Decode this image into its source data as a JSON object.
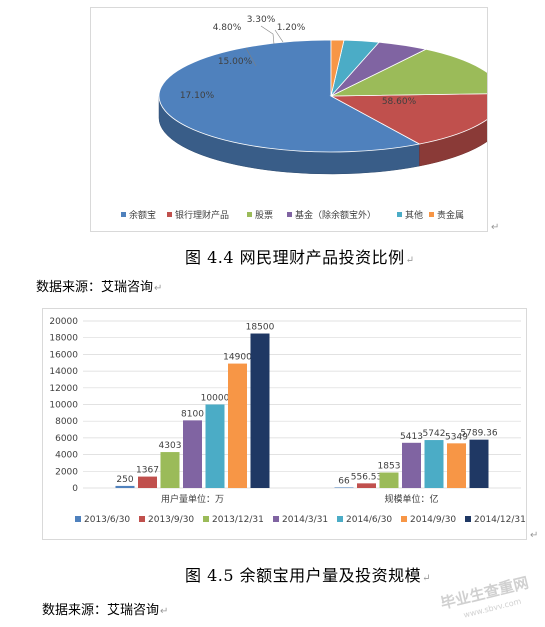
{
  "chart_data": [
    {
      "type": "pie",
      "style": "3d",
      "title": "",
      "slices": [
        {
          "label": "余额宝",
          "value": 58.6,
          "display": "58.60%",
          "color": "#4f81bd"
        },
        {
          "label": "银行理财产品",
          "value": 17.1,
          "display": "17.10%",
          "color": "#c0504d"
        },
        {
          "label": "股票",
          "value": 15.0,
          "display": "15.00%",
          "color": "#9bbb59"
        },
        {
          "label": "基金（除余额宝外）",
          "value": 4.8,
          "display": "4.80%",
          "color": "#8064a2"
        },
        {
          "label": "其他",
          "value": 3.3,
          "display": "3.30%",
          "color": "#4bacc6"
        },
        {
          "label": "贵金属",
          "value": 1.2,
          "display": "1.20%",
          "color": "#f79646"
        }
      ],
      "legend_position": "bottom"
    },
    {
      "type": "bar",
      "title": "",
      "ylim": [
        0,
        20000
      ],
      "yticks": [
        0,
        2000,
        4000,
        6000,
        8000,
        10000,
        12000,
        14000,
        16000,
        18000,
        20000
      ],
      "grid": true,
      "legend_position": "bottom",
      "groups": [
        {
          "label": "用户量单位：万",
          "values": [
            250,
            1367,
            4303,
            8100,
            10000,
            14900,
            18500
          ],
          "value_labels": [
            "250",
            "1367",
            "4303",
            "8100",
            "10000",
            "14900",
            "18500"
          ]
        },
        {
          "label": "规模单位：亿",
          "values": [
            66,
            556.53,
            1853,
            5413,
            5742,
            5349,
            5789.36
          ],
          "value_labels": [
            "66",
            "556.53",
            "1853",
            "5413",
            "5742",
            "5349",
            "5789.36"
          ]
        }
      ],
      "series": [
        {
          "name": "2013/6/30",
          "color": "#4f81bd"
        },
        {
          "name": "2013/9/30",
          "color": "#c0504d"
        },
        {
          "name": "2013/12/31",
          "color": "#9bbb59"
        },
        {
          "name": "2014/3/31",
          "color": "#8064a2"
        },
        {
          "name": "2014/6/30",
          "color": "#4bacc6"
        },
        {
          "name": "2014/9/30",
          "color": "#f79646"
        },
        {
          "name": "2014/12/31",
          "color": "#1f3864"
        }
      ]
    }
  ],
  "captions": {
    "fig44": "图 4.4  网民理财产品投资比例",
    "fig45": "图 4.5  余额宝用户量及投资规模"
  },
  "sources": {
    "s1": "数据来源：艾瑞咨询",
    "s2": "数据来源：艾瑞咨询"
  },
  "watermark": {
    "line1": "毕业生查重网",
    "line2": "www.sbvv.com"
  }
}
